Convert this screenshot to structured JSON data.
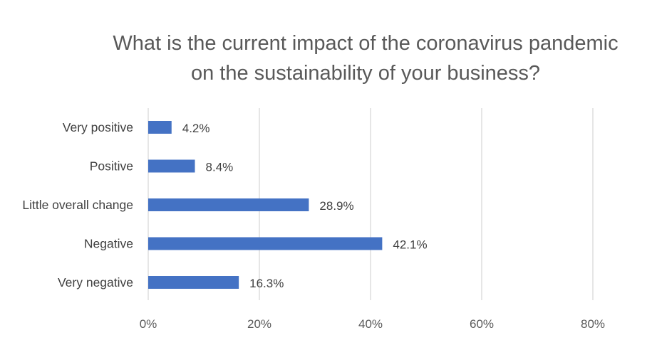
{
  "chart_data": {
    "type": "bar",
    "orientation": "horizontal",
    "title_lines": [
      "What is the current impact of the coronavirus pandemic",
      "on the sustainability of your business?"
    ],
    "categories": [
      "Very positive",
      "Positive",
      "Little overall change",
      "Negative",
      "Very negative"
    ],
    "values": [
      4.2,
      8.4,
      28.9,
      42.1,
      16.3
    ],
    "value_labels": [
      "4.2%",
      "8.4%",
      "28.9%",
      "42.1%",
      "16.3%"
    ],
    "xlim": [
      0,
      80
    ],
    "ticks": [
      0,
      20,
      40,
      60,
      80
    ],
    "tick_labels": [
      "0%",
      "20%",
      "40%",
      "60%",
      "80%"
    ],
    "grid": true,
    "legend": "none",
    "bar_color": "#4472C4",
    "grid_color": "#D9D9D9"
  }
}
